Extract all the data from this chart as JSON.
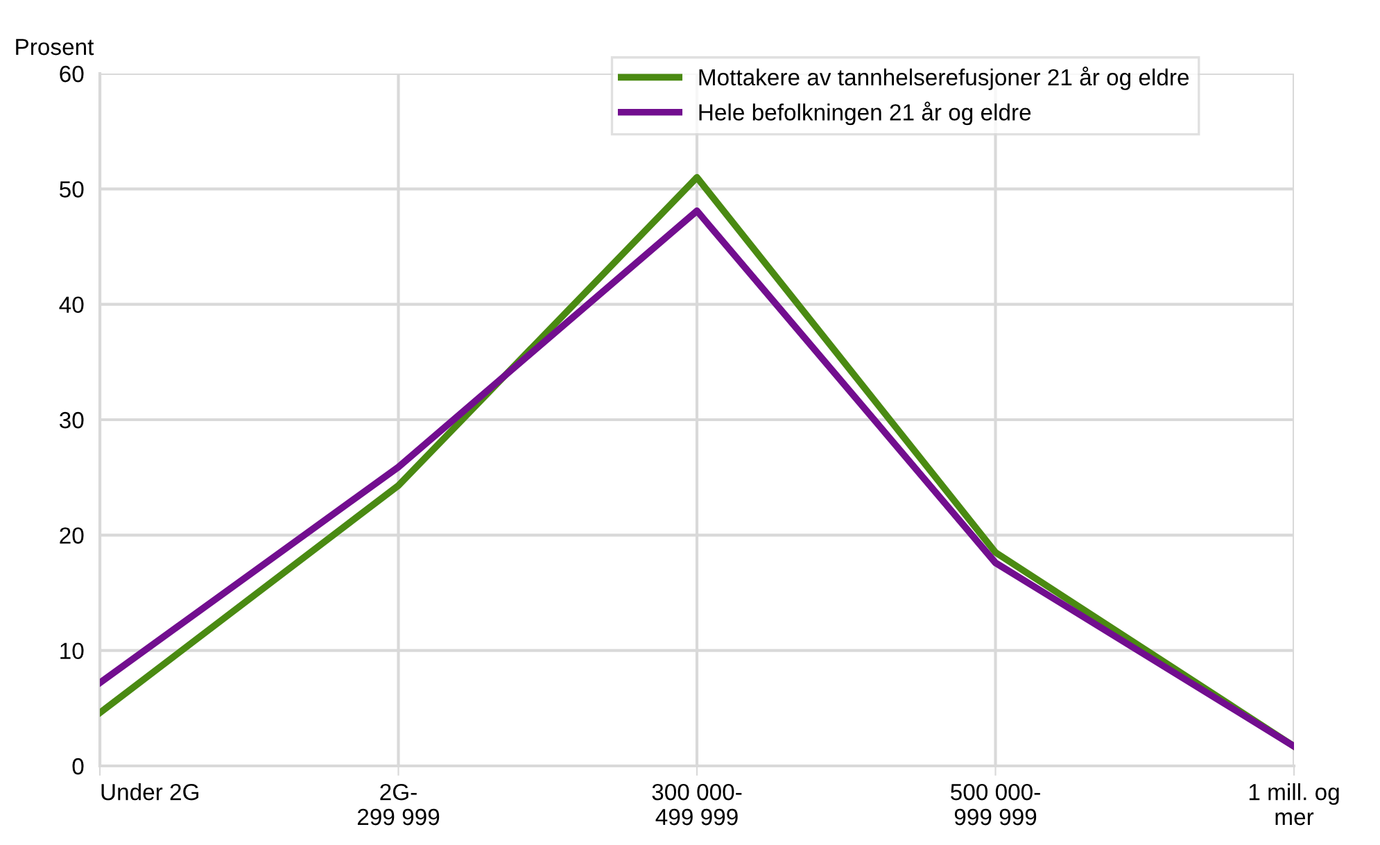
{
  "chart_data": {
    "type": "line",
    "ylabel": "Prosent",
    "categories": [
      "Under 2G",
      "2G-\n299 999",
      "300 000-\n499 999",
      "500 000-\n999 999",
      "1 mill. og\nmer"
    ],
    "series": [
      {
        "name": "Mottakere av tannhelserefusjoner 21 år og eldre",
        "color": "#4a8a12",
        "values": [
          4.6,
          24.3,
          51.0,
          18.5,
          1.7
        ]
      },
      {
        "name": "Hele befolkningen 21 år og eldre",
        "color": "#720e8f",
        "values": [
          7.2,
          25.9,
          48.1,
          17.6,
          1.7
        ]
      }
    ],
    "ylim": [
      0,
      60
    ],
    "yticks": [
      0,
      10,
      20,
      30,
      40,
      50,
      60
    ],
    "grid": true,
    "legend": "top right",
    "marker": "none",
    "line_style": "solid"
  }
}
